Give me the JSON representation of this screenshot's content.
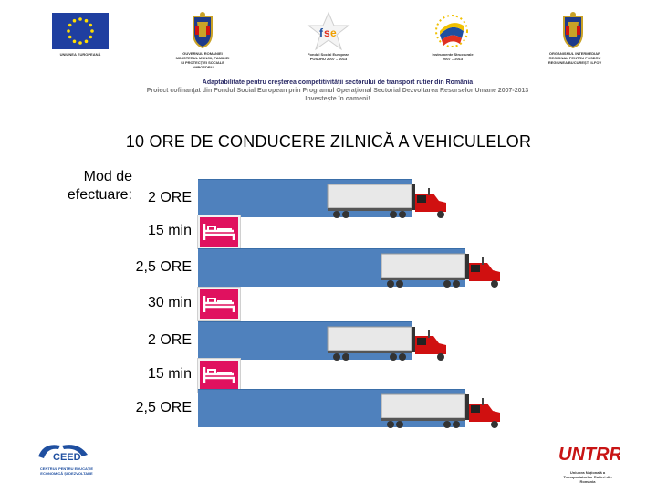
{
  "header": {
    "logos": [
      {
        "icon": "eu-flag-icon",
        "caption": "UNIUNEA EUROPEANĂ"
      },
      {
        "icon": "coat-of-arms-icon",
        "caption": "GUVERNUL ROMÂNIEI\nMINISTERUL MUNCII, FAMILIEI\nȘI PROTECȚIEI SOCIALE\nAMPOSDRU"
      },
      {
        "icon": "fse-star-logo-icon",
        "caption": "Fondul Social European\nPOSDRU 2007 – 2013"
      },
      {
        "icon": "structural-instruments-logo-icon",
        "caption": "Instrumente Structurale\n2007 – 2013"
      },
      {
        "icon": "coat-of-arms-icon",
        "caption": "ORGANISMUL INTERMEDIAR\nREGIONAL PENTRU POSDRU\nREGIUNEA BUCUREȘTI ILFOV"
      }
    ],
    "line1": "Adaptabilitate pentru creşterea competitivităţii sectorului de transport rutier din România",
    "line2": "Proiect cofinanţat din Fondul Social European prin Programul Operaţional Sectorial Dezvoltarea Resurselor Umane 2007-2013",
    "line3": "Investeşte în oameni!"
  },
  "title": "10 ORE DE CONDUCERE ZILNICĂ A VEHICULELOR",
  "mode_label_line1": "Mod de",
  "mode_label_line2": "efectuare:",
  "rows": [
    {
      "label": "2 ORE",
      "kind": "drive",
      "duration_hours": 2
    },
    {
      "label": "15 min",
      "kind": "rest",
      "duration_hours": 0.25
    },
    {
      "label": "2,5 ORE",
      "kind": "drive",
      "duration_hours": 2.5
    },
    {
      "label": "30 min",
      "kind": "rest",
      "duration_hours": 0.5
    },
    {
      "label": "2 ORE",
      "kind": "drive",
      "duration_hours": 2
    },
    {
      "label": "15 min",
      "kind": "rest",
      "duration_hours": 0.25
    },
    {
      "label": "2,5 ORE",
      "kind": "drive",
      "duration_hours": 2.5
    }
  ],
  "colors": {
    "drive_bar": "#4f81bd",
    "rest_box": "#e0115f",
    "truck_cab": "#d01010",
    "trailer": "#e8e8e8"
  },
  "icons": {
    "drive": "truck-icon",
    "rest": "bed-icon"
  },
  "footer": {
    "left_logo": {
      "text": "CEED",
      "caption": "CENTRUL PENTRU EDUCAȚIE\nECONOMICĂ ȘI DEZVOLTARE"
    },
    "right_logo": {
      "text": "UNTRR",
      "caption": "Uniunea Națională a\nTransportatorilor Rutieri din\nRomânia"
    }
  }
}
